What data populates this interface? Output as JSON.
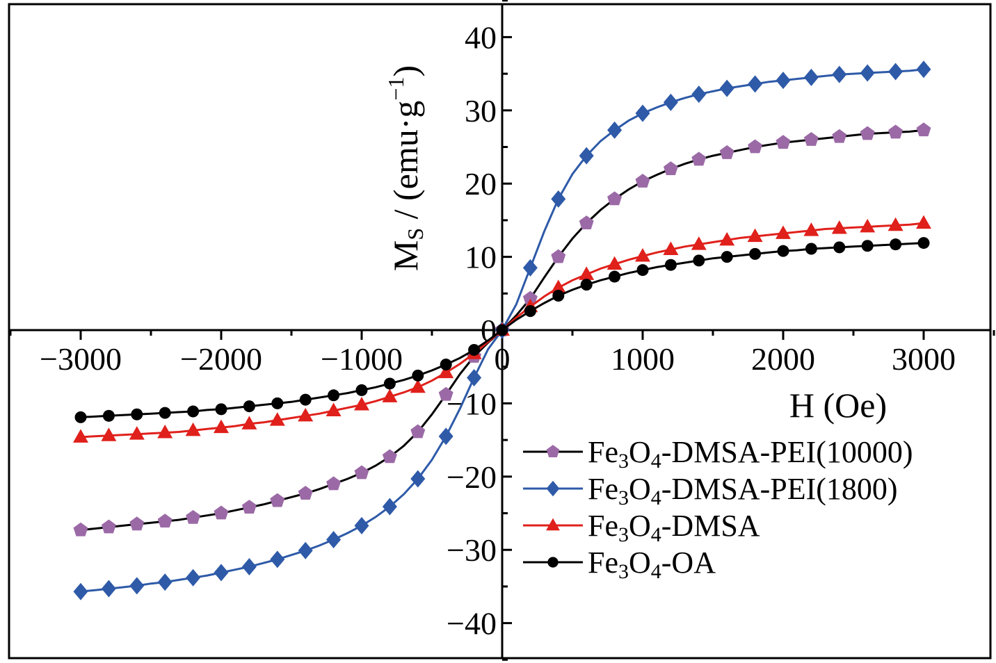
{
  "chart_data": {
    "type": "line",
    "title": "",
    "xlabel": "H (Oe)",
    "ylabel": {
      "main": "M",
      "sub": "S",
      "rest": " / (emu·g",
      "sup": "−1",
      "close": ")"
    },
    "xlim": [
      -3500,
      3500
    ],
    "ylim": [
      -45,
      45
    ],
    "xticks": [
      -3000,
      -2000,
      -1000,
      0,
      1000,
      2000,
      3000
    ],
    "xtick_labels": [
      "−3000",
      "−2000",
      "−1000",
      "0",
      "1000",
      "2000",
      "3000"
    ],
    "yticks": [
      -40,
      -30,
      -20,
      -10,
      0,
      10,
      20,
      30,
      40
    ],
    "ytick_labels": [
      "−40",
      "−30",
      "−20",
      "−10",
      "0",
      "10",
      "20",
      "30",
      "40"
    ],
    "grid": false,
    "legend_position": "bottom-right",
    "x": [
      -3000,
      -2900,
      -2800,
      -2700,
      -2600,
      -2500,
      -2400,
      -2300,
      -2200,
      -2100,
      -2000,
      -1900,
      -1800,
      -1700,
      -1600,
      -1500,
      -1400,
      -1300,
      -1200,
      -1100,
      -1000,
      -900,
      -800,
      -700,
      -600,
      -500,
      -400,
      -300,
      -200,
      -100,
      0,
      100,
      200,
      300,
      400,
      500,
      600,
      700,
      800,
      900,
      1000,
      1100,
      1200,
      1300,
      1400,
      1500,
      1600,
      1700,
      1800,
      1900,
      2000,
      2100,
      2200,
      2300,
      2400,
      2500,
      2600,
      2700,
      2800,
      2900,
      3000
    ],
    "series": [
      {
        "name": "Fe3O4-DMSA-PEI(10000)",
        "legend": {
          "p1": "Fe",
          "s1": "3",
          "p2": "O",
          "s2": "4",
          "p3": "-DMSA-PEI(10000)"
        },
        "color": "#9b6aa6",
        "line_color": "#000000",
        "marker": "pentagon",
        "y": [
          -27.3,
          -27.1,
          -26.9,
          -26.7,
          -26.5,
          -26.3,
          -26.1,
          -25.9,
          -25.6,
          -25.3,
          -25.0,
          -24.6,
          -24.2,
          -23.8,
          -23.3,
          -22.8,
          -22.3,
          -21.7,
          -21.0,
          -20.3,
          -19.5,
          -18.5,
          -17.3,
          -15.8,
          -13.9,
          -11.5,
          -8.8,
          -6.0,
          -3.6,
          -1.7,
          0.0,
          2.0,
          4.3,
          7.2,
          10.0,
          12.5,
          14.6,
          16.4,
          17.9,
          19.2,
          20.3,
          21.2,
          22.0,
          22.7,
          23.3,
          23.8,
          24.2,
          24.6,
          25.0,
          25.3,
          25.6,
          25.8,
          26.0,
          26.2,
          26.4,
          26.6,
          26.8,
          26.9,
          27.0,
          27.1,
          27.3
        ]
      },
      {
        "name": "Fe3O4-DMSA-PEI(1800)",
        "legend": {
          "p1": "Fe",
          "s1": "3",
          "p2": "O",
          "s2": "4",
          "p3": "-DMSA-PEI(1800)"
        },
        "color": "#2e5aa8",
        "line_color": "#2e5aa8",
        "marker": "diamond",
        "y": [
          -35.7,
          -35.5,
          -35.3,
          -35.1,
          -34.9,
          -34.6,
          -34.4,
          -34.1,
          -33.8,
          -33.5,
          -33.1,
          -32.7,
          -32.3,
          -31.8,
          -31.3,
          -30.7,
          -30.1,
          -29.4,
          -28.6,
          -27.7,
          -26.7,
          -25.5,
          -24.1,
          -22.4,
          -20.3,
          -17.7,
          -14.5,
          -10.7,
          -6.5,
          -2.6,
          0.0,
          3.5,
          8.5,
          13.5,
          17.9,
          21.3,
          23.8,
          25.8,
          27.3,
          28.6,
          29.6,
          30.4,
          31.1,
          31.7,
          32.2,
          32.6,
          33.0,
          33.3,
          33.6,
          33.9,
          34.1,
          34.3,
          34.5,
          34.7,
          34.9,
          35.0,
          35.1,
          35.2,
          35.3,
          35.4,
          35.6
        ]
      },
      {
        "name": "Fe3O4-DMSA",
        "legend": {
          "p1": "Fe",
          "s1": "3",
          "p2": "O",
          "s2": "4",
          "p3": "-DMSA"
        },
        "color": "#e0201b",
        "line_color": "#e0201b",
        "marker": "triangle",
        "y": [
          -14.6,
          -14.5,
          -14.4,
          -14.3,
          -14.2,
          -14.1,
          -14.0,
          -13.9,
          -13.7,
          -13.5,
          -13.3,
          -13.1,
          -12.8,
          -12.6,
          -12.3,
          -12.0,
          -11.7,
          -11.4,
          -11.0,
          -10.6,
          -10.2,
          -9.7,
          -9.1,
          -8.5,
          -7.8,
          -6.9,
          -5.8,
          -4.6,
          -3.2,
          -1.6,
          0.0,
          1.7,
          3.2,
          4.6,
          5.8,
          6.8,
          7.6,
          8.4,
          9.0,
          9.6,
          10.1,
          10.6,
          11.0,
          11.4,
          11.7,
          12.0,
          12.3,
          12.6,
          12.8,
          13.0,
          13.2,
          13.4,
          13.6,
          13.8,
          13.9,
          14.0,
          14.1,
          14.2,
          14.3,
          14.4,
          14.6
        ]
      },
      {
        "name": "Fe3O4-OA",
        "legend": {
          "p1": "Fe",
          "s1": "3",
          "p2": "O",
          "s2": "4",
          "p3": "-OA"
        },
        "color": "#000000",
        "line_color": "#000000",
        "marker": "circle",
        "y": [
          -11.9,
          -11.8,
          -11.7,
          -11.6,
          -11.5,
          -11.4,
          -11.3,
          -11.2,
          -11.1,
          -10.9,
          -10.8,
          -10.6,
          -10.4,
          -10.2,
          -10.0,
          -9.8,
          -9.5,
          -9.2,
          -8.9,
          -8.6,
          -8.2,
          -7.8,
          -7.3,
          -6.8,
          -6.2,
          -5.5,
          -4.7,
          -3.8,
          -2.7,
          -1.4,
          0.0,
          1.4,
          2.6,
          3.7,
          4.7,
          5.5,
          6.2,
          6.8,
          7.3,
          7.8,
          8.2,
          8.6,
          8.9,
          9.2,
          9.5,
          9.8,
          10.0,
          10.2,
          10.4,
          10.6,
          10.8,
          10.9,
          11.1,
          11.2,
          11.3,
          11.4,
          11.5,
          11.6,
          11.7,
          11.8,
          11.9
        ]
      }
    ]
  }
}
